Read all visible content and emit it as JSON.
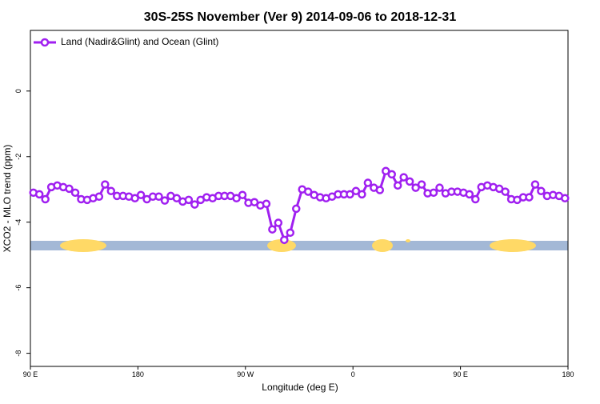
{
  "chart_data": {
    "type": "line",
    "title": "30S-25S November (Ver 9)   2014-09-06 to 2018-12-31",
    "x_label": "Longitude (deg E)",
    "y_label": "XCO2 - MLO trend (ppm)",
    "x": [
      92.5,
      97.5,
      102.5,
      107.5,
      112.5,
      117.5,
      122.5,
      127.5,
      132.5,
      137.5,
      142.5,
      147.5,
      152.5,
      157.5,
      162.5,
      167.5,
      172.5,
      177.5,
      182.5,
      187.5,
      192.5,
      197.5,
      202.5,
      207.5,
      212.5,
      217.5,
      222.5,
      227.5,
      232.5,
      237.5,
      242.5,
      247.5,
      252.5,
      257.5,
      262.5,
      267.5,
      272.5,
      277.5,
      282.5,
      287.5,
      292.5,
      297.5,
      302.5,
      307.5,
      312.5,
      317.5,
      322.5,
      327.5,
      332.5,
      337.5,
      342.5,
      347.5,
      352.5,
      357.5,
      362.5,
      367.5,
      372.5,
      377.5,
      382.5,
      387.5,
      392.5,
      397.5,
      402.5,
      407.5,
      412.5,
      417.5,
      422.5,
      427.5,
      432.5,
      437.5,
      442.5,
      447.5,
      452.5,
      457.5,
      462.5,
      467.5,
      472.5,
      477.5,
      482.5,
      487.5,
      492.5,
      497.5,
      502.5,
      507.5,
      512.5,
      517.5,
      522.5,
      527.5,
      532.5,
      537.5
    ],
    "series": [
      {
        "name": "Land (Nadir&Glint) and Ocean (Glint)",
        "color": "#a020f0",
        "values": [
          -3.1,
          -3.15,
          -3.3,
          -2.93,
          -2.88,
          -2.93,
          -2.98,
          -3.1,
          -3.3,
          -3.32,
          -3.27,
          -3.22,
          -2.85,
          -3.05,
          -3.2,
          -3.2,
          -3.22,
          -3.27,
          -3.17,
          -3.3,
          -3.22,
          -3.22,
          -3.34,
          -3.2,
          -3.27,
          -3.37,
          -3.32,
          -3.46,
          -3.32,
          -3.24,
          -3.27,
          -3.2,
          -3.2,
          -3.2,
          -3.27,
          -3.17,
          -3.41,
          -3.39,
          -3.49,
          -3.44,
          -4.22,
          -4.02,
          -4.54,
          -4.32,
          -3.59,
          -3.0,
          -3.07,
          -3.17,
          -3.24,
          -3.27,
          -3.22,
          -3.15,
          -3.15,
          -3.15,
          -3.05,
          -3.15,
          -2.8,
          -2.95,
          -3.02,
          -2.44,
          -2.54,
          -2.88,
          -2.63,
          -2.76,
          -2.95,
          -2.85,
          -3.12,
          -3.1,
          -2.95,
          -3.12,
          -3.07,
          -3.07,
          -3.1,
          -3.15,
          -3.3,
          -2.93,
          -2.88,
          -2.93,
          -2.98,
          -3.07,
          -3.3,
          -3.32,
          -3.24,
          -3.24,
          -2.85,
          -3.05,
          -3.2,
          -3.17,
          -3.2,
          -3.27
        ]
      }
    ],
    "xlim": [
      90,
      540
    ],
    "xticks": [
      {
        "value": 90,
        "label": "90 E"
      },
      {
        "value": 180,
        "label": "180"
      },
      {
        "value": 270,
        "label": "90 W"
      },
      {
        "value": 360,
        "label": "0"
      },
      {
        "value": 450,
        "label": "90 E"
      },
      {
        "value": 540,
        "label": "180"
      }
    ],
    "ylim": [
      -8.4,
      1.85
    ],
    "yticks": [
      0,
      -2,
      -4,
      -6,
      -8
    ],
    "legend": "upper left"
  }
}
